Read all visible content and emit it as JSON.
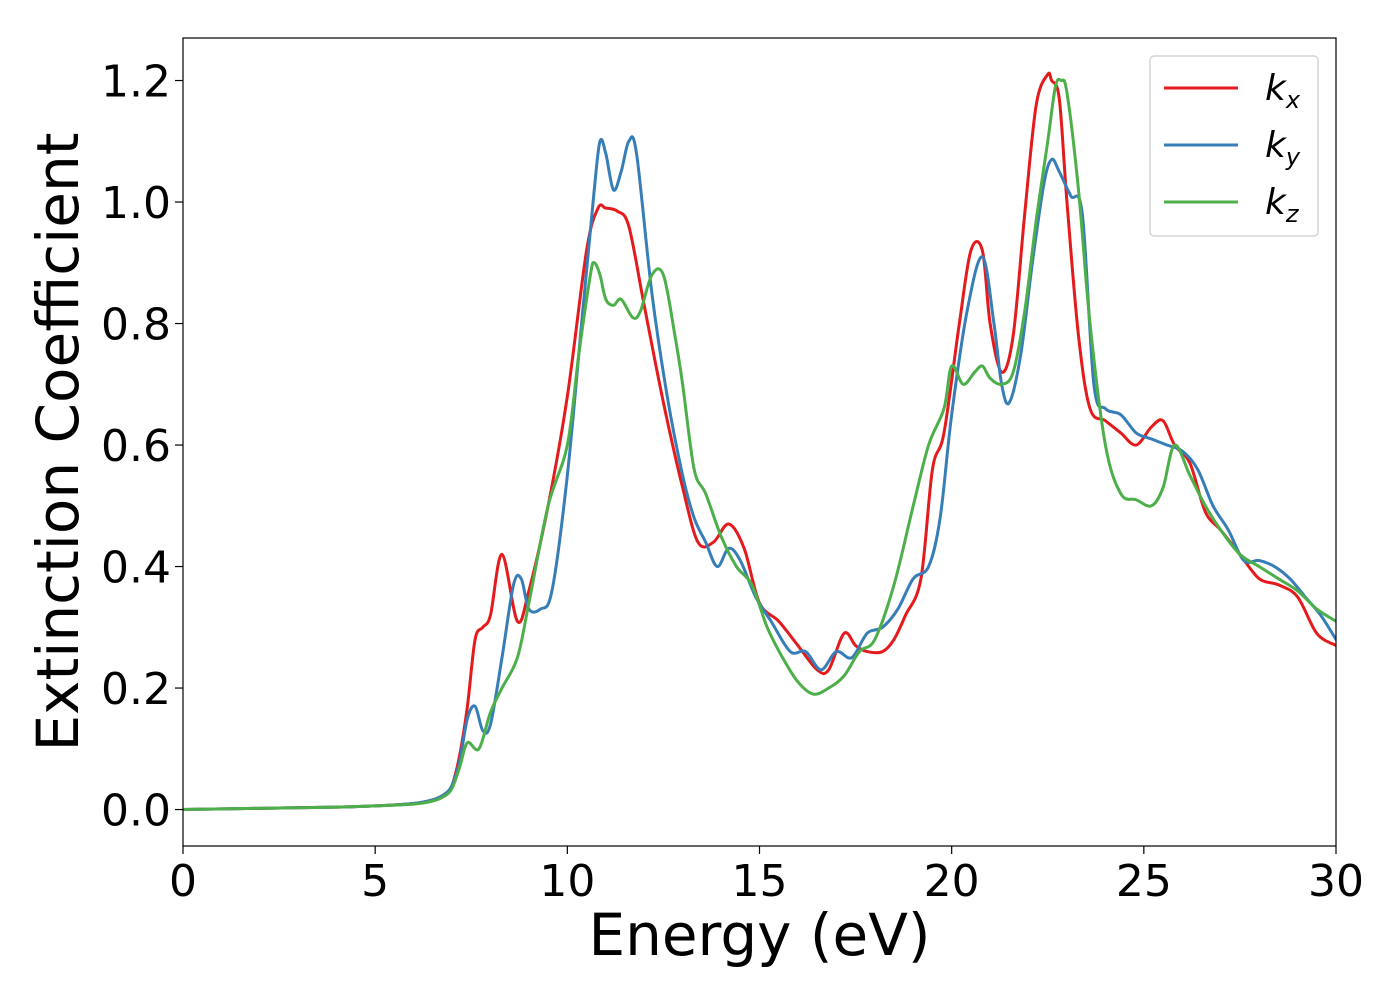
{
  "chart_data": {
    "type": "line",
    "title": "",
    "xlabel": "Energy (eV)",
    "ylabel": "Extinction Coefficient",
    "xlim": [
      0,
      30
    ],
    "ylim": [
      -0.06,
      1.27
    ],
    "xticks": [
      0,
      5,
      10,
      15,
      20,
      25,
      30
    ],
    "xtick_labels": [
      "0",
      "5",
      "10",
      "15",
      "20",
      "25",
      "30"
    ],
    "yticks": [
      0.0,
      0.2,
      0.4,
      0.6,
      0.8,
      1.0,
      1.2
    ],
    "ytick_labels": [
      "0.0",
      "0.2",
      "0.4",
      "0.6",
      "0.8",
      "1.0",
      "1.2"
    ],
    "grid": false,
    "legend_position": "top-right",
    "series": [
      {
        "name": "kx",
        "legend_main": "k",
        "legend_sub": "x",
        "color": "#e41a1c",
        "x": [
          0,
          2,
          4,
          5,
          6,
          6.5,
          6.8,
          7.0,
          7.2,
          7.4,
          7.6,
          7.8,
          8.0,
          8.3,
          8.7,
          9.0,
          9.5,
          10.0,
          10.5,
          10.8,
          11.0,
          11.3,
          11.6,
          12.0,
          12.5,
          13.0,
          13.4,
          13.8,
          14.2,
          14.6,
          15.0,
          15.5,
          16.0,
          16.5,
          16.8,
          17.2,
          17.5,
          17.8,
          18.2,
          18.5,
          18.8,
          19.2,
          19.5,
          19.8,
          20.2,
          20.5,
          20.8,
          21.0,
          21.3,
          21.6,
          21.9,
          22.2,
          22.5,
          22.6,
          22.8,
          23.0,
          23.3,
          23.6,
          24.0,
          24.4,
          24.8,
          25.2,
          25.5,
          25.8,
          26.2,
          26.6,
          27.0,
          27.5,
          28.0,
          28.5,
          29.0,
          29.5,
          30.0
        ],
        "y": [
          0.0,
          0.002,
          0.004,
          0.006,
          0.01,
          0.016,
          0.025,
          0.04,
          0.09,
          0.17,
          0.28,
          0.3,
          0.32,
          0.42,
          0.31,
          0.36,
          0.5,
          0.68,
          0.92,
          0.99,
          0.99,
          0.985,
          0.96,
          0.83,
          0.67,
          0.53,
          0.44,
          0.44,
          0.47,
          0.43,
          0.34,
          0.31,
          0.27,
          0.23,
          0.23,
          0.29,
          0.27,
          0.26,
          0.26,
          0.28,
          0.32,
          0.38,
          0.56,
          0.62,
          0.8,
          0.92,
          0.92,
          0.8,
          0.72,
          0.78,
          0.98,
          1.16,
          1.21,
          1.2,
          1.17,
          1.0,
          0.78,
          0.66,
          0.64,
          0.62,
          0.6,
          0.63,
          0.64,
          0.6,
          0.57,
          0.49,
          0.46,
          0.42,
          0.38,
          0.37,
          0.35,
          0.29,
          0.27
        ]
      },
      {
        "name": "ky",
        "legend_main": "k",
        "legend_sub": "y",
        "color": "#377eb8",
        "x": [
          0,
          2,
          4,
          5,
          6,
          6.5,
          6.8,
          7.0,
          7.2,
          7.4,
          7.6,
          7.8,
          8.0,
          8.3,
          8.6,
          8.8,
          9.0,
          9.3,
          9.6,
          10.0,
          10.4,
          10.7,
          10.85,
          11.0,
          11.2,
          11.4,
          11.6,
          11.8,
          12.2,
          12.6,
          13.0,
          13.3,
          13.6,
          13.9,
          14.2,
          14.5,
          14.9,
          15.3,
          15.8,
          16.2,
          16.6,
          17.0,
          17.4,
          17.8,
          18.2,
          18.6,
          19.0,
          19.4,
          19.7,
          20.0,
          20.4,
          20.8,
          21.1,
          21.3,
          21.5,
          21.8,
          22.1,
          22.4,
          22.6,
          22.8,
          23.1,
          23.4,
          23.7,
          24.0,
          24.4,
          24.8,
          25.2,
          25.6,
          26.0,
          26.4,
          26.8,
          27.2,
          27.6,
          28.0,
          28.4,
          28.8,
          29.2,
          29.6,
          30.0
        ],
        "y": [
          0.0,
          0.002,
          0.004,
          0.006,
          0.01,
          0.016,
          0.025,
          0.04,
          0.08,
          0.15,
          0.17,
          0.13,
          0.14,
          0.25,
          0.37,
          0.38,
          0.33,
          0.33,
          0.36,
          0.55,
          0.82,
          1.02,
          1.1,
          1.08,
          1.02,
          1.05,
          1.1,
          1.08,
          0.85,
          0.68,
          0.55,
          0.48,
          0.44,
          0.4,
          0.43,
          0.41,
          0.35,
          0.31,
          0.26,
          0.26,
          0.23,
          0.26,
          0.25,
          0.29,
          0.3,
          0.33,
          0.38,
          0.4,
          0.48,
          0.65,
          0.82,
          0.91,
          0.8,
          0.7,
          0.67,
          0.75,
          0.9,
          1.03,
          1.07,
          1.05,
          1.01,
          0.98,
          0.7,
          0.66,
          0.65,
          0.62,
          0.61,
          0.6,
          0.59,
          0.56,
          0.5,
          0.46,
          0.41,
          0.41,
          0.4,
          0.38,
          0.35,
          0.32,
          0.28
        ]
      },
      {
        "name": "kz",
        "legend_main": "k",
        "legend_sub": "z",
        "color": "#4daf4a",
        "x": [
          0,
          2,
          4,
          5,
          6,
          6.5,
          6.8,
          7.0,
          7.2,
          7.4,
          7.7,
          8.0,
          8.3,
          8.7,
          9.0,
          9.5,
          10.0,
          10.3,
          10.6,
          10.7,
          10.85,
          11.0,
          11.2,
          11.4,
          11.7,
          11.9,
          12.2,
          12.5,
          12.8,
          13.0,
          13.3,
          13.6,
          14.0,
          14.4,
          14.8,
          15.2,
          15.6,
          16.0,
          16.4,
          16.8,
          17.2,
          17.6,
          18.0,
          18.5,
          19.0,
          19.4,
          19.8,
          20.0,
          20.3,
          20.6,
          20.8,
          21.0,
          21.3,
          21.6,
          21.9,
          22.2,
          22.5,
          22.7,
          22.85,
          23.0,
          23.3,
          23.6,
          24.0,
          24.4,
          24.8,
          25.2,
          25.5,
          25.8,
          26.2,
          26.6,
          27.0,
          27.5,
          28.0,
          28.5,
          29.0,
          29.5,
          30.0
        ],
        "y": [
          0.0,
          0.002,
          0.004,
          0.006,
          0.009,
          0.014,
          0.022,
          0.035,
          0.07,
          0.11,
          0.1,
          0.16,
          0.2,
          0.25,
          0.34,
          0.5,
          0.6,
          0.75,
          0.88,
          0.9,
          0.88,
          0.84,
          0.83,
          0.84,
          0.81,
          0.82,
          0.88,
          0.88,
          0.78,
          0.7,
          0.56,
          0.52,
          0.45,
          0.4,
          0.37,
          0.3,
          0.25,
          0.21,
          0.19,
          0.2,
          0.22,
          0.26,
          0.28,
          0.37,
          0.5,
          0.6,
          0.66,
          0.73,
          0.7,
          0.72,
          0.73,
          0.71,
          0.7,
          0.72,
          0.82,
          0.97,
          1.1,
          1.19,
          1.2,
          1.18,
          1.02,
          0.8,
          0.6,
          0.52,
          0.51,
          0.5,
          0.53,
          0.6,
          0.55,
          0.5,
          0.46,
          0.42,
          0.4,
          0.38,
          0.36,
          0.33,
          0.31
        ]
      }
    ]
  }
}
